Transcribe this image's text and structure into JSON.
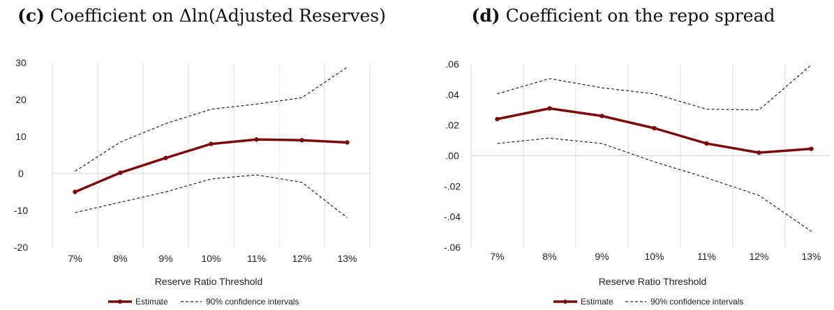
{
  "colors": {
    "estimate": "#7b0a0a",
    "ci": "#222222",
    "grid": "#dcdcdc",
    "zero_line": "#cfcfcf"
  },
  "chart_data": [
    {
      "id": "c",
      "type": "line",
      "title": "(c) Coefficient on Δln(Adjusted Reserves)",
      "title_prefix": "(c)",
      "title_text": "Coefficient on Δln(Adjusted Reserves)",
      "xlabel": "Reserve Ratio Threshold",
      "ylabel": "",
      "categories": [
        "7%",
        "8%",
        "9%",
        "10%",
        "11%",
        "12%",
        "13%"
      ],
      "yticks": [
        "30",
        "20",
        "10",
        "0",
        "-10",
        "-20"
      ],
      "ylim": [
        -20,
        30
      ],
      "grid": "vertical",
      "legend_position": "bottom",
      "series": [
        {
          "name": "Estimate",
          "style": "solid",
          "values": [
            -5,
            0.2,
            4.2,
            8.0,
            9.2,
            9.0,
            8.4
          ]
        },
        {
          "name": "90% confidence intervals",
          "style": "dashed",
          "values": [
            0.6,
            8.5,
            13.5,
            17.4,
            18.8,
            20.5,
            28.8
          ]
        },
        {
          "name": "",
          "style": "dashed",
          "values": [
            -10.6,
            -7.8,
            -5.0,
            -1.5,
            -0.4,
            -2.4,
            -12.0
          ]
        }
      ],
      "legend": {
        "estimate": "Estimate",
        "ci": "90% confidence intervals"
      }
    },
    {
      "id": "d",
      "type": "line",
      "title": "(d) Coefficient on the repo spread",
      "title_prefix": "(d)",
      "title_text": "Coefficient on the repo spread",
      "xlabel": "Reserve Ratio Threshold",
      "ylabel": "",
      "categories": [
        "7%",
        "8%",
        "9%",
        "10%",
        "11%",
        "12%",
        "13%"
      ],
      "yticks": [
        ".06",
        ".04",
        ".02",
        ".00",
        "-.02",
        "-.04",
        "-.06"
      ],
      "ylim": [
        -0.06,
        0.06
      ],
      "grid": "vertical",
      "legend_position": "bottom",
      "series": [
        {
          "name": "Estimate",
          "style": "solid",
          "values": [
            0.024,
            0.031,
            0.026,
            0.018,
            0.008,
            0.002,
            0.0045
          ]
        },
        {
          "name": "90% confidence intervals",
          "style": "dashed",
          "values": [
            0.0405,
            0.0505,
            0.0445,
            0.0405,
            0.0305,
            0.03,
            0.0595
          ]
        },
        {
          "name": "",
          "style": "dashed",
          "values": [
            0.008,
            0.0115,
            0.008,
            -0.004,
            -0.0145,
            -0.026,
            -0.0495
          ]
        }
      ],
      "legend": {
        "estimate": "Estimate",
        "ci": "90% confidence intervals"
      }
    }
  ]
}
